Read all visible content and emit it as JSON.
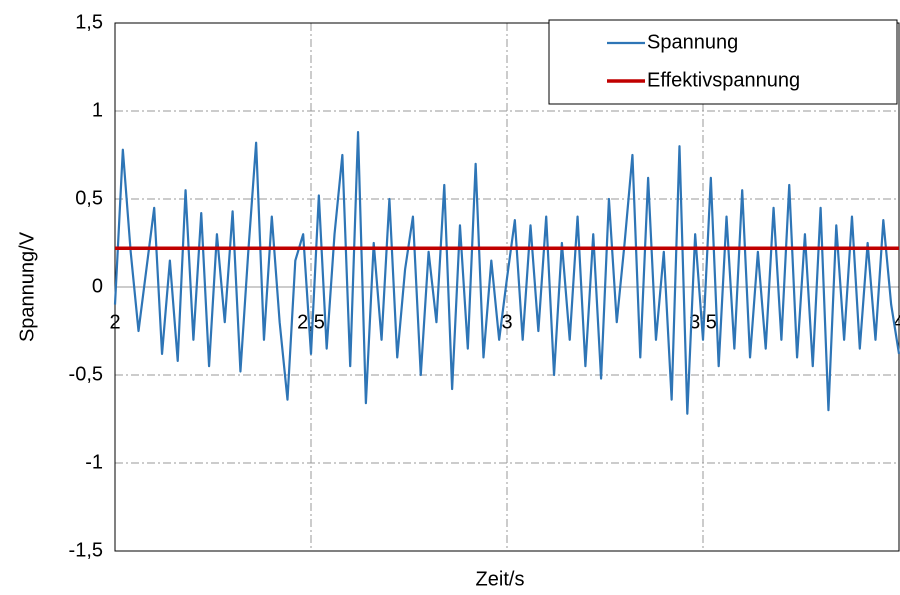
{
  "chart_data": {
    "type": "line",
    "xlabel": "Zeit/s",
    "ylabel": "Spannung/V",
    "xlim": [
      2,
      4
    ],
    "ylim": [
      -1.5,
      1.5
    ],
    "xticks": [
      2,
      {
        "value": 2.5,
        "label": "2,5"
      },
      3,
      {
        "value": 3.5,
        "label": "3,5"
      },
      4
    ],
    "yticks": [
      {
        "value": -1.5,
        "label": "-1,5"
      },
      -1,
      {
        "value": -0.5,
        "label": "-0,5"
      },
      0,
      {
        "value": 0.5,
        "label": "0,5"
      },
      1,
      {
        "value": 1.5,
        "label": "1,5"
      }
    ],
    "grid": true,
    "legend": "upper right",
    "series": [
      {
        "name": "Spannung",
        "color": "#2e75b6",
        "x": [
          2,
          2.02,
          2.04,
          2.06,
          2.08,
          2.1,
          2.12,
          2.14,
          2.16,
          2.18,
          2.2,
          2.22,
          2.24,
          2.26,
          2.28,
          2.3,
          2.32,
          2.34,
          2.36,
          2.38,
          2.4,
          2.42,
          2.44,
          2.46,
          2.48,
          2.5,
          2.52,
          2.54,
          2.56,
          2.58,
          2.6,
          2.62,
          2.64,
          2.66,
          2.68,
          2.7,
          2.72,
          2.74,
          2.76,
          2.78,
          2.8,
          2.82,
          2.84,
          2.86,
          2.88,
          2.9,
          2.92,
          2.94,
          2.96,
          2.98,
          3,
          3.02,
          3.04,
          3.06,
          3.08,
          3.1,
          3.12,
          3.14,
          3.16,
          3.18,
          3.2,
          3.22,
          3.24,
          3.26,
          3.28,
          3.3,
          3.32,
          3.34,
          3.36,
          3.38,
          3.4,
          3.42,
          3.44,
          3.46,
          3.48,
          3.5,
          3.52,
          3.54,
          3.56,
          3.58,
          3.6,
          3.62,
          3.64,
          3.66,
          3.68,
          3.7,
          3.72,
          3.74,
          3.76,
          3.78,
          3.8,
          3.82,
          3.84,
          3.86,
          3.88,
          3.9,
          3.92,
          3.94,
          3.96,
          3.98,
          4
        ],
        "values": [
          -0.1,
          0.78,
          0.2,
          -0.25,
          0.1,
          0.45,
          -0.38,
          0.15,
          -0.42,
          0.55,
          -0.3,
          0.42,
          -0.45,
          0.3,
          -0.2,
          0.43,
          -0.48,
          0.2,
          0.82,
          -0.3,
          0.4,
          -0.2,
          -0.64,
          0.15,
          0.3,
          -0.38,
          0.52,
          -0.35,
          0.3,
          0.75,
          -0.45,
          0.88,
          -0.66,
          0.25,
          -0.3,
          0.5,
          -0.4,
          0.1,
          0.4,
          -0.5,
          0.2,
          -0.2,
          0.58,
          -0.58,
          0.35,
          -0.35,
          0.7,
          -0.4,
          0.15,
          -0.3,
          0.05,
          0.38,
          -0.3,
          0.35,
          -0.25,
          0.4,
          -0.5,
          0.25,
          -0.3,
          0.4,
          -0.45,
          0.3,
          -0.52,
          0.5,
          -0.2,
          0.25,
          0.75,
          -0.4,
          0.62,
          -0.3,
          0.2,
          -0.64,
          0.8,
          -0.72,
          0.3,
          -0.3,
          0.62,
          -0.45,
          0.4,
          -0.35,
          0.55,
          -0.4,
          0.2,
          -0.35,
          0.45,
          -0.3,
          0.58,
          -0.4,
          0.3,
          -0.45,
          0.45,
          -0.7,
          0.35,
          -0.3,
          0.4,
          -0.35,
          0.25,
          -0.3,
          0.38,
          -0.1,
          -0.38
        ]
      },
      {
        "name": "Effektivspannung",
        "color": "#c00000",
        "x": [
          2,
          4
        ],
        "values": [
          0.22,
          0.22
        ]
      }
    ]
  }
}
